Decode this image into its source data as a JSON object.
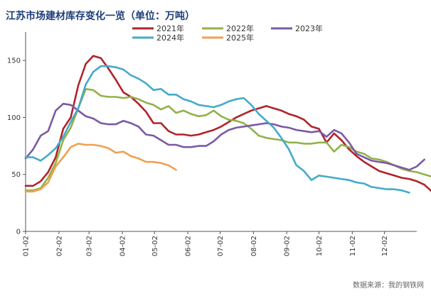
{
  "chart_data": {
    "type": "line",
    "title": "江苏市场建材库存变化一览（单位：万吨）",
    "source": "数据来源：我的钢铁网",
    "ylim": [
      0,
      175
    ],
    "yticks": [
      0,
      50,
      100,
      150
    ],
    "xlim": [
      1,
      53
    ],
    "x_tick_labels": [
      {
        "label": "01-02",
        "week": 1
      },
      {
        "label": "02-02",
        "week": 5.43
      },
      {
        "label": "03-02",
        "week": 9.43
      },
      {
        "label": "04-02",
        "week": 13.86
      },
      {
        "label": "05-02",
        "week": 18.14
      },
      {
        "label": "06-02",
        "week": 22.57
      },
      {
        "label": "07-02",
        "week": 26.86
      },
      {
        "label": "08-02",
        "week": 31.29
      },
      {
        "label": "09-02",
        "week": 35.71
      },
      {
        "label": "10-02",
        "week": 40
      },
      {
        "label": "11-02",
        "week": 44.43
      },
      {
        "label": "12-02",
        "week": 48.71
      }
    ],
    "legend_position": "top",
    "grid": false,
    "series": [
      {
        "name": "2021年",
        "color": "#b0232a",
        "values": [
          40,
          40,
          44,
          52,
          65,
          90,
          100,
          128,
          147,
          154,
          152,
          143,
          133,
          122,
          118,
          112,
          105,
          95,
          95,
          88,
          85,
          85,
          84,
          85,
          87,
          89,
          92,
          96,
          100,
          103,
          106,
          108,
          110,
          108,
          106,
          103,
          101,
          98,
          92,
          90,
          78,
          86,
          80,
          72,
          66,
          61,
          57,
          53,
          51,
          49,
          47,
          46,
          44,
          41,
          35
        ]
      },
      {
        "name": "2022年",
        "color": "#92b24a",
        "values": [
          36,
          36,
          38,
          47,
          60,
          80,
          91,
          108,
          125,
          124,
          119,
          118,
          118,
          117,
          118,
          116,
          113,
          111,
          107,
          110,
          104,
          106,
          103,
          101,
          102,
          106,
          101,
          98,
          97,
          95,
          90,
          84,
          82,
          81,
          80,
          78,
          78,
          77,
          77,
          78,
          78,
          70,
          76,
          74,
          70,
          68,
          64,
          63,
          61,
          58,
          55,
          53,
          52,
          50,
          48,
          52
        ]
      },
      {
        "name": "2023年",
        "color": "#7a5aa6",
        "values": [
          64,
          72,
          84,
          88,
          106,
          112,
          111,
          106,
          101,
          99,
          95,
          94,
          94,
          97,
          95,
          92,
          85,
          84,
          80,
          76,
          76,
          74,
          74,
          75,
          75,
          79,
          85,
          89,
          91,
          92,
          93,
          94,
          95,
          94,
          92,
          91,
          89,
          88,
          87,
          88,
          83,
          89,
          86,
          78,
          68,
          65,
          62,
          61,
          60,
          58,
          56,
          54,
          57,
          63
        ]
      },
      {
        "name": "2024年",
        "color": "#44aacb",
        "values": [
          65,
          65,
          62,
          67,
          73,
          83,
          96,
          108,
          129,
          140,
          145,
          145,
          144,
          142,
          137,
          134,
          130,
          124,
          125,
          120,
          120,
          116,
          114,
          111,
          110,
          109,
          111,
          114,
          116,
          117,
          111,
          103,
          97,
          91,
          82,
          72,
          58,
          53,
          45,
          49,
          48,
          47,
          46,
          45,
          43,
          42,
          39,
          38,
          37,
          37,
          36,
          34
        ]
      },
      {
        "name": "2025年",
        "color": "#f0a050",
        "values": [
          35,
          35,
          37,
          43,
          57,
          65,
          74,
          77,
          76,
          76,
          75,
          73,
          69,
          70,
          66,
          64,
          61,
          61,
          60,
          58,
          54
        ]
      }
    ]
  }
}
